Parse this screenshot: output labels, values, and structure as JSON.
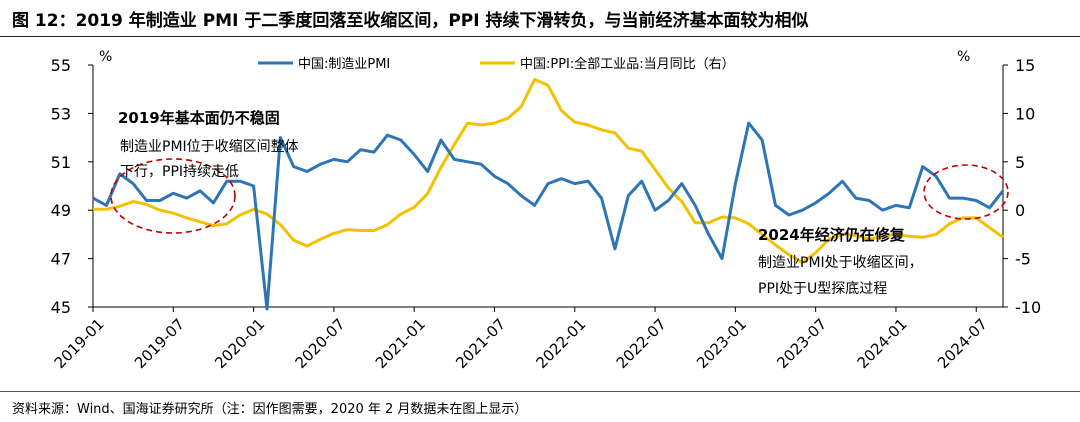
{
  "figure": {
    "title": "图 12：2019 年制造业 PMI 于二季度回落至收缩区间，PPI 持续下滑转负，与当前经济基本面较为相似",
    "source": "资料来源：Wind、国海证券研究所（注：因作图需要，2020 年 2 月数据未在图上显示）"
  },
  "chart_data": {
    "type": "line",
    "x": [
      "2019-01",
      "2019-02",
      "2019-03",
      "2019-04",
      "2019-05",
      "2019-06",
      "2019-07",
      "2019-08",
      "2019-09",
      "2019-10",
      "2019-11",
      "2019-12",
      "2020-01",
      "2020-02",
      "2020-03",
      "2020-04",
      "2020-05",
      "2020-06",
      "2020-07",
      "2020-08",
      "2020-09",
      "2020-10",
      "2020-11",
      "2020-12",
      "2021-01",
      "2021-02",
      "2021-03",
      "2021-04",
      "2021-05",
      "2021-06",
      "2021-07",
      "2021-08",
      "2021-09",
      "2021-10",
      "2021-11",
      "2021-12",
      "2022-01",
      "2022-02",
      "2022-03",
      "2022-04",
      "2022-05",
      "2022-06",
      "2022-07",
      "2022-08",
      "2022-09",
      "2022-10",
      "2022-11",
      "2022-12",
      "2023-01",
      "2023-02",
      "2023-03",
      "2023-04",
      "2023-05",
      "2023-06",
      "2023-07",
      "2023-08",
      "2023-09",
      "2023-10",
      "2023-11",
      "2023-12",
      "2024-01",
      "2024-02",
      "2024-03",
      "2024-04",
      "2024-05",
      "2024-06",
      "2024-07",
      "2024-08",
      "2024-09"
    ],
    "x_tick_labels": [
      "2019-01",
      "2019-07",
      "2020-01",
      "2020-07",
      "2021-01",
      "2021-07",
      "2022-01",
      "2022-07",
      "2023-01",
      "2023-07",
      "2024-01",
      "2024-07"
    ],
    "left_axis": {
      "unit": "%",
      "min": 45,
      "max": 55,
      "ticks": [
        45,
        47,
        49,
        51,
        53,
        55
      ]
    },
    "right_axis": {
      "unit": "%",
      "min": -10,
      "max": 15,
      "ticks": [
        -10,
        -5,
        0,
        5,
        10,
        15
      ]
    },
    "series": [
      {
        "name": "中国:制造业PMI",
        "axis": "left",
        "color": "#2E75B6",
        "values": [
          49.5,
          49.2,
          50.5,
          50.1,
          49.4,
          49.4,
          49.7,
          49.5,
          49.8,
          49.3,
          50.2,
          50.2,
          50.0,
          null,
          52.0,
          50.8,
          50.6,
          50.9,
          51.1,
          51.0,
          51.5,
          51.4,
          52.1,
          51.9,
          51.3,
          50.6,
          51.9,
          51.1,
          51.0,
          50.9,
          50.4,
          50.1,
          49.6,
          49.2,
          50.1,
          50.3,
          50.1,
          50.2,
          49.5,
          47.4,
          49.6,
          50.2,
          49.0,
          49.4,
          50.1,
          49.2,
          48.0,
          47.0,
          50.1,
          52.6,
          51.9,
          49.2,
          48.8,
          49.0,
          49.3,
          49.7,
          50.2,
          49.5,
          49.4,
          49.0,
          49.2,
          49.1,
          50.8,
          50.4,
          49.5,
          49.5,
          49.4,
          49.1,
          49.8
        ]
      },
      {
        "name": "中国:PPI:全部工业品:当月同比（右）",
        "axis": "right",
        "color": "#F2C200",
        "values": [
          0.1,
          0.1,
          0.4,
          0.9,
          0.6,
          0.0,
          -0.3,
          -0.8,
          -1.2,
          -1.6,
          -1.4,
          -0.5,
          0.1,
          -0.4,
          -1.5,
          -3.1,
          -3.7,
          -3.0,
          -2.4,
          -2.0,
          -2.1,
          -2.1,
          -1.5,
          -0.4,
          0.3,
          1.7,
          4.4,
          6.8,
          9.0,
          8.8,
          9.0,
          9.5,
          10.7,
          13.5,
          12.9,
          10.3,
          9.1,
          8.8,
          8.3,
          8.0,
          6.4,
          6.1,
          4.2,
          2.3,
          0.9,
          -1.3,
          -1.3,
          -0.7,
          -0.8,
          -1.4,
          -2.5,
          -3.6,
          -4.6,
          -5.4,
          -4.4,
          -3.0,
          -2.5,
          -2.6,
          -3.0,
          -2.7,
          -2.5,
          -2.7,
          -2.8,
          -2.5,
          -1.4,
          -0.8,
          -0.8,
          -1.8,
          -2.8
        ]
      }
    ],
    "annotations": [
      {
        "title": "2019年基本面仍不稳固",
        "lines": [
          "制造业PMI位于收缩区间整体",
          "下行，PPI持续走低"
        ]
      },
      {
        "title": "2024年经济仍在修复",
        "lines": [
          "制造业PMI处于收缩区间，",
          "PPI处于U型探底过程"
        ]
      }
    ],
    "legend_position": "top-center",
    "grid": false
  }
}
